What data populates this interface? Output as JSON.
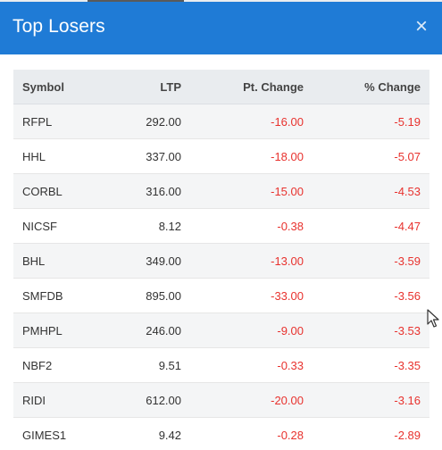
{
  "modal": {
    "title": "Top Losers",
    "close_glyph": "×",
    "close_icon": "close-icon"
  },
  "table": {
    "headers": {
      "symbol": "Symbol",
      "ltp": "LTP",
      "pt_change": "Pt. Change",
      "pct_change": "% Change"
    },
    "rows": [
      {
        "symbol": "RFPL",
        "ltp": "292.00",
        "pt_change": "-16.00",
        "pct_change": "-5.19"
      },
      {
        "symbol": "HHL",
        "ltp": "337.00",
        "pt_change": "-18.00",
        "pct_change": "-5.07"
      },
      {
        "symbol": "CORBL",
        "ltp": "316.00",
        "pt_change": "-15.00",
        "pct_change": "-4.53"
      },
      {
        "symbol": "NICSF",
        "ltp": "8.12",
        "pt_change": "-0.38",
        "pct_change": "-4.47"
      },
      {
        "symbol": "BHL",
        "ltp": "349.00",
        "pt_change": "-13.00",
        "pct_change": "-3.59"
      },
      {
        "symbol": "SMFDB",
        "ltp": "895.00",
        "pt_change": "-33.00",
        "pct_change": "-3.56"
      },
      {
        "symbol": "PMHPL",
        "ltp": "246.00",
        "pt_change": "-9.00",
        "pct_change": "-3.53"
      },
      {
        "symbol": "NBF2",
        "ltp": "9.51",
        "pt_change": "-0.33",
        "pct_change": "-3.35"
      },
      {
        "symbol": "RIDI",
        "ltp": "612.00",
        "pt_change": "-20.00",
        "pct_change": "-3.16"
      },
      {
        "symbol": "GIMES1",
        "ltp": "9.42",
        "pt_change": "-0.28",
        "pct_change": "-2.89"
      }
    ]
  },
  "colors": {
    "header_bg": "#1f7bd6",
    "negative": "#e8322e",
    "table_header_bg": "#e9ecef"
  }
}
